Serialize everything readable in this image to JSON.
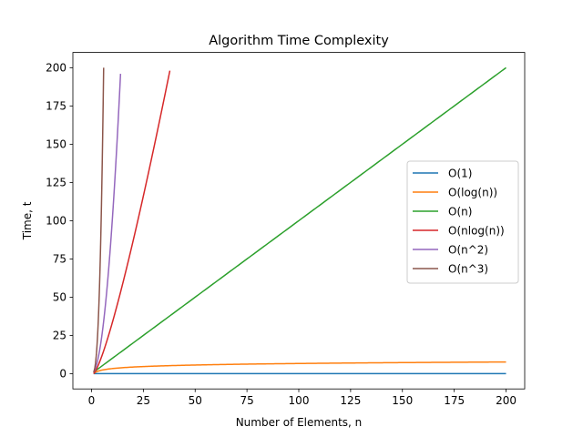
{
  "chart_data": {
    "type": "line",
    "title": "Algorithm Time Complexity",
    "xlabel": "Number of Elements, n",
    "ylabel": "Time, t",
    "xlim": [
      -9,
      209
    ],
    "ylim": [
      -9.98,
      209.98
    ],
    "xticks": [
      0,
      25,
      50,
      75,
      100,
      125,
      150,
      175,
      200
    ],
    "yticks": [
      0,
      25,
      50,
      75,
      100,
      125,
      150,
      175,
      200
    ],
    "grid": false,
    "legend_position": "right",
    "series": [
      {
        "name": "O(1)",
        "color": "#1f77b4",
        "points": [
          [
            1,
            0
          ],
          [
            200,
            0
          ]
        ]
      },
      {
        "name": "O(log(n))",
        "color": "#ff7f0e",
        "points": [
          [
            1,
            0
          ],
          [
            2,
            1
          ],
          [
            4,
            2
          ],
          [
            8,
            3
          ],
          [
            16,
            4
          ],
          [
            32,
            5
          ],
          [
            64,
            6
          ],
          [
            128,
            7
          ],
          [
            200,
            7.64
          ]
        ]
      },
      {
        "name": "O(n)",
        "color": "#2ca02c",
        "points": [
          [
            1,
            1
          ],
          [
            200,
            200
          ]
        ]
      },
      {
        "name": "O(nlog(n))",
        "color": "#d62728",
        "points": [
          [
            1,
            0
          ],
          [
            2,
            2
          ],
          [
            4,
            8
          ],
          [
            8,
            24
          ],
          [
            12,
            43
          ],
          [
            16,
            64
          ],
          [
            20,
            86.4
          ],
          [
            24,
            110
          ],
          [
            28,
            134.6
          ],
          [
            32,
            160
          ],
          [
            36,
            186.1
          ],
          [
            37.8,
            198.1
          ]
        ]
      },
      {
        "name": "O(n^2)",
        "color": "#9467bd",
        "points": [
          [
            1,
            1
          ],
          [
            2,
            4
          ],
          [
            4,
            16
          ],
          [
            6,
            36
          ],
          [
            8,
            64
          ],
          [
            10,
            100
          ],
          [
            12,
            144
          ],
          [
            14,
            196
          ]
        ]
      },
      {
        "name": "O(n^3)",
        "color": "#8c564b",
        "points": [
          [
            1,
            1
          ],
          [
            2,
            8
          ],
          [
            3,
            27
          ],
          [
            4,
            64
          ],
          [
            5,
            125
          ],
          [
            5.85,
            200
          ]
        ]
      }
    ]
  }
}
